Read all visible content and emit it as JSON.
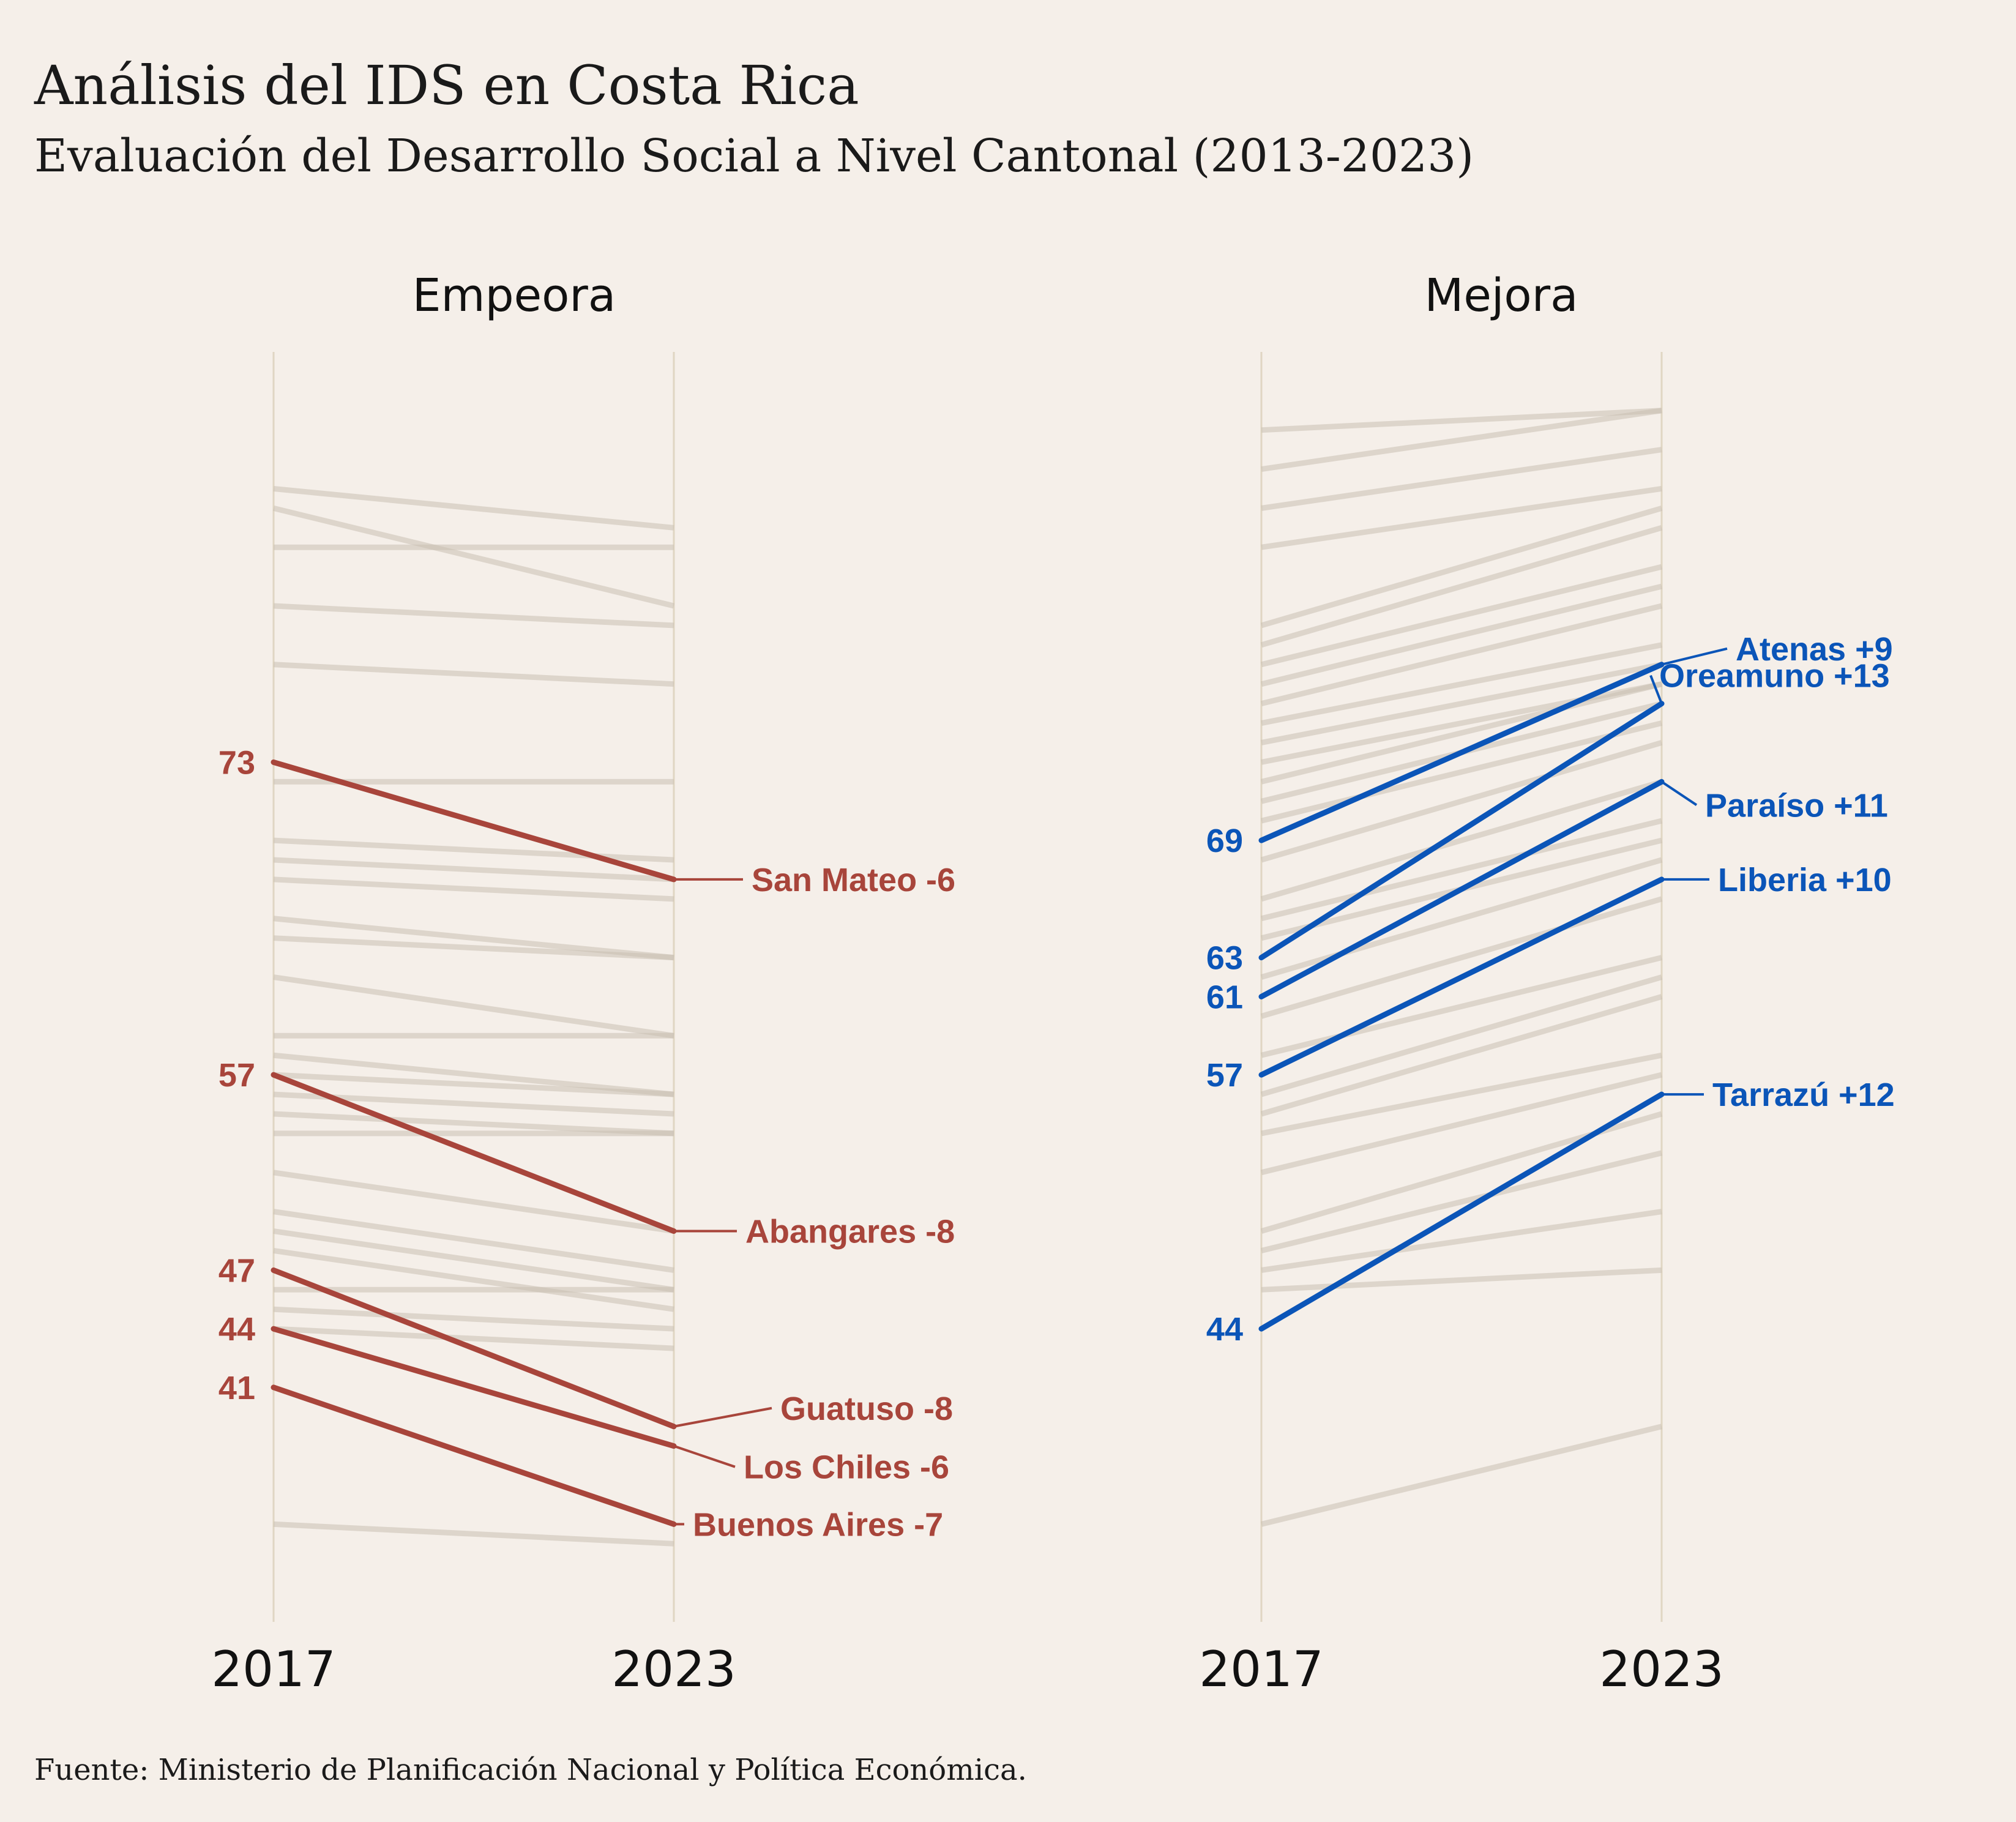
{
  "title": "Análisis del IDS en Costa Rica",
  "subtitle": "Evaluación del Desarrollo Social a Nivel Cantonal (2013-2023)",
  "caption": "Fuente: Ministerio de Planificación Nacional y Política Económica.",
  "colors": {
    "background": "#f5efe9",
    "background_line": "#c9bfb3",
    "axis_line": "#e0d6c3",
    "worsen": "#a8453b",
    "improve": "#0b55b8"
  },
  "chart_data": [
    {
      "type": "line",
      "chart_kind": "slope",
      "facet_title": "Empeora",
      "x": [
        "2017",
        "2023"
      ],
      "ylim": [
        29,
        94
      ],
      "highlight_color": "#a8453b",
      "background_series": [
        [
          87,
          85
        ],
        [
          86,
          81
        ],
        [
          84,
          84
        ],
        [
          81,
          80
        ],
        [
          78,
          77
        ],
        [
          72,
          72
        ],
        [
          69,
          68
        ],
        [
          68,
          67
        ],
        [
          67,
          66
        ],
        [
          65,
          63
        ],
        [
          64,
          63
        ],
        [
          62,
          59
        ],
        [
          59,
          59
        ],
        [
          58,
          56
        ],
        [
          57,
          56
        ],
        [
          56,
          55
        ],
        [
          55,
          54
        ],
        [
          54,
          54
        ],
        [
          52,
          49
        ],
        [
          50,
          47
        ],
        [
          49,
          46
        ],
        [
          48,
          45
        ],
        [
          46,
          46
        ],
        [
          45,
          44
        ],
        [
          44,
          43
        ],
        [
          34,
          33
        ]
      ],
      "highlight_series": [
        {
          "name": "San Mateo",
          "start": 73,
          "end": 67,
          "change": "-6",
          "label": "San Mateo -6"
        },
        {
          "name": "Abangares",
          "start": 57,
          "end": 49,
          "change": "-8",
          "label": "Abangares -8"
        },
        {
          "name": "Guatuso",
          "start": 47,
          "end": 39,
          "change": "-8",
          "label": "Guatuso -8"
        },
        {
          "name": "Los Chiles",
          "start": 44,
          "end": 38,
          "change": "-6",
          "label": "Los Chiles -6"
        },
        {
          "name": "Buenos Aires",
          "start": 41,
          "end": 34,
          "change": "-7",
          "label": "Buenos Aires -7"
        }
      ]
    },
    {
      "type": "line",
      "chart_kind": "slope",
      "facet_title": "Mejora",
      "x": [
        "2017",
        "2023"
      ],
      "ylim": [
        29,
        94
      ],
      "highlight_color": "#0b55b8",
      "background_series": [
        [
          90,
          91
        ],
        [
          88,
          91
        ],
        [
          86,
          89
        ],
        [
          84,
          87
        ],
        [
          80,
          86
        ],
        [
          79,
          85
        ],
        [
          78,
          83
        ],
        [
          77,
          82
        ],
        [
          76,
          81
        ],
        [
          75,
          79
        ],
        [
          74,
          78
        ],
        [
          73,
          77
        ],
        [
          72,
          77
        ],
        [
          71,
          76
        ],
        [
          70,
          75
        ],
        [
          68,
          74
        ],
        [
          66,
          72
        ],
        [
          65,
          70
        ],
        [
          64,
          69
        ],
        [
          62,
          68
        ],
        [
          60,
          66
        ],
        [
          58,
          63
        ],
        [
          56,
          62
        ],
        [
          55,
          61
        ],
        [
          54,
          58
        ],
        [
          52,
          57
        ],
        [
          49,
          55
        ],
        [
          48,
          53
        ],
        [
          47,
          50
        ],
        [
          46,
          47
        ],
        [
          34,
          39
        ]
      ],
      "highlight_series": [
        {
          "name": "Atenas",
          "start": 69,
          "end": 78,
          "change": "+9",
          "label": "Atenas +9"
        },
        {
          "name": "Oreamuno",
          "start": 63,
          "end": 76,
          "change": "+13",
          "label": "Oreamuno +13"
        },
        {
          "name": "Paraíso",
          "start": 61,
          "end": 72,
          "change": "+11",
          "label": "Paraíso +11"
        },
        {
          "name": "Liberia",
          "start": 57,
          "end": 67,
          "change": "+10",
          "label": "Liberia +10"
        },
        {
          "name": "Tarrazú",
          "start": 44,
          "end": 56,
          "change": "+12",
          "label": "Tarrazú +12"
        }
      ]
    }
  ]
}
